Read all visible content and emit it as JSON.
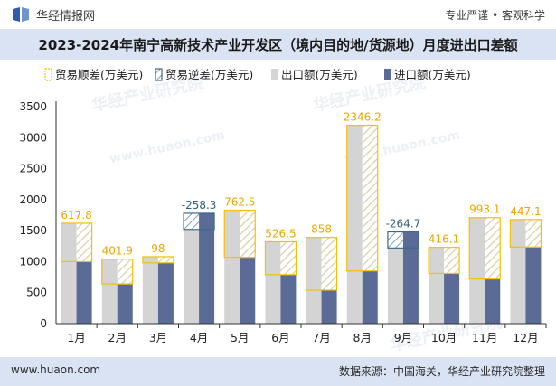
{
  "header": {
    "brand": "华经情报网",
    "slogan": "专业严谨 • 客观科学",
    "title": "2023-2024年南宁高新技术产业开发区（境内目的地/货源地）月度进出口差额"
  },
  "footer": {
    "website": "www.huaon.com",
    "source": "数据来源：中国海关，华经产业研究院整理"
  },
  "watermark": {
    "text1": "华经产业研究院",
    "text2": "www.huaon.com"
  },
  "chart_data": {
    "type": "bar",
    "categories": [
      "1月",
      "2月",
      "3月",
      "4月",
      "5月",
      "6月",
      "7月",
      "8月",
      "9月",
      "10月",
      "11月",
      "12月"
    ],
    "ylim": [
      0,
      3500
    ],
    "yticks": [
      0,
      500,
      1000,
      1500,
      2000,
      2500,
      3000,
      3500
    ],
    "legend": [
      "贸易顺差(万美元)",
      "贸易逆差(万美元)",
      "出口额(万美元)",
      "进口额(万美元)"
    ],
    "legend_position": "top",
    "grid": false,
    "series": [
      {
        "name": "出口额(万美元)",
        "values": [
          1620,
          1040,
          1080,
          1520,
          1830,
          1320,
          1390,
          3200,
          1220,
          1230,
          1710,
          1680
        ]
      },
      {
        "name": "进口额(万美元)",
        "values": [
          1000,
          640,
          980,
          1780,
          1070,
          790,
          540,
          850,
          1480,
          810,
          720,
          1235
        ]
      }
    ],
    "balance_labels": [
      "617.8",
      "401.9",
      "98",
      "-258.3",
      "762.5",
      "526.5",
      "858",
      "2346.2",
      "-264.7",
      "416.1",
      "993.1",
      "447.1"
    ],
    "colors": {
      "export": "#d4d4d4",
      "import": "#5a6b96",
      "surplus_border": "#f5c000",
      "surplus_label": "#e6a800",
      "deficit_border": "#3d6a8a",
      "deficit_label": "#2f5f7a",
      "axis": "#333333"
    }
  }
}
